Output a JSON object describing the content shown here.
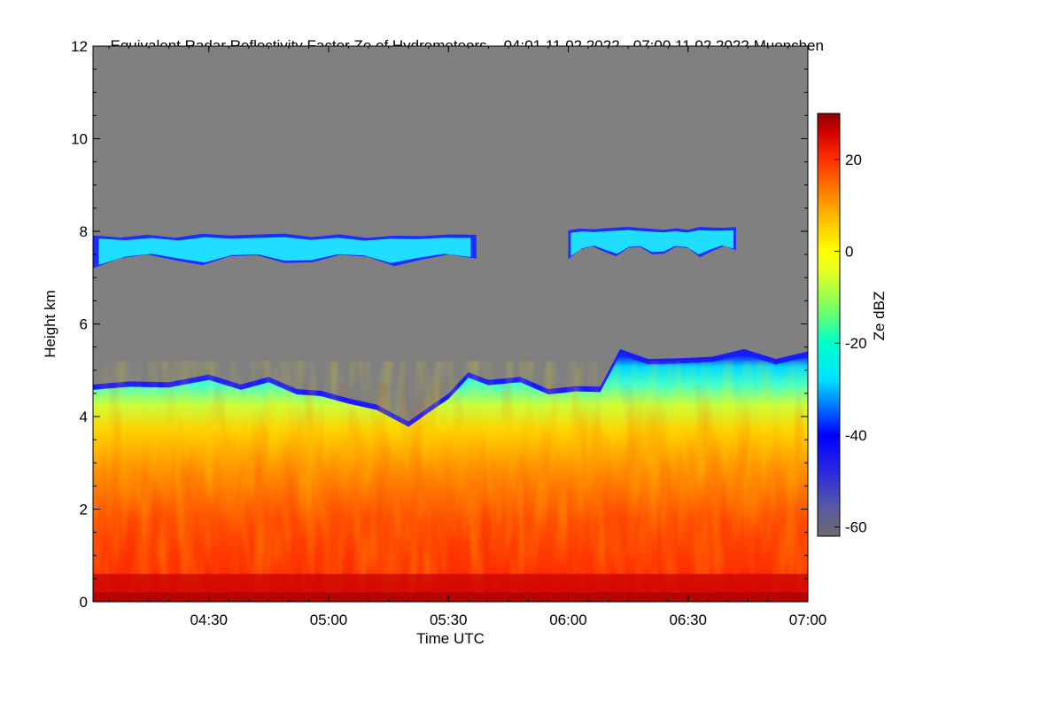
{
  "chart_data": {
    "type": "heatmap",
    "title": "Equivalent Radar Reflectivity Factor Ze of Hydrometeors",
    "period": "04:01 11.02.2022 - 07:00 11.02.2022",
    "station": "Muenchen",
    "xlabel": "Time UTC",
    "ylabel": "Height km",
    "x_ticks": [
      "04:30",
      "05:00",
      "05:30",
      "06:00",
      "06:30",
      "07:00"
    ],
    "x_tick_minutes": [
      30,
      60,
      90,
      120,
      150,
      180
    ],
    "xlim_minutes": [
      1,
      180
    ],
    "y_ticks": [
      0,
      2,
      4,
      6,
      8,
      10,
      12
    ],
    "ylim": [
      0,
      12
    ],
    "colorbar": {
      "label": "Ze dBZ",
      "ticks": [
        20,
        0,
        -20,
        -40,
        -60
      ],
      "range": [
        -62,
        30
      ],
      "stops": [
        {
          "v": -62,
          "c": "#6b6b6b"
        },
        {
          "v": -56,
          "c": "#5a5aa0"
        },
        {
          "v": -48,
          "c": "#2a2ae0"
        },
        {
          "v": -40,
          "c": "#0000ff"
        },
        {
          "v": -34,
          "c": "#0070ff"
        },
        {
          "v": -28,
          "c": "#00e0ff"
        },
        {
          "v": -20,
          "c": "#00ffcc"
        },
        {
          "v": -12,
          "c": "#80ff60"
        },
        {
          "v": -4,
          "c": "#e8ff20"
        },
        {
          "v": 0,
          "c": "#ffff00"
        },
        {
          "v": 6,
          "c": "#ffc800"
        },
        {
          "v": 12,
          "c": "#ff8a00"
        },
        {
          "v": 20,
          "c": "#ff3000"
        },
        {
          "v": 26,
          "c": "#d00000"
        },
        {
          "v": 30,
          "c": "#8a0000"
        }
      ]
    },
    "background_color": "#808080",
    "series": [
      {
        "name": "precipitation_echo_top_km",
        "times_minutes": [
          1,
          10,
          20,
          30,
          38,
          45,
          52,
          58,
          65,
          72,
          80,
          86,
          90,
          95,
          100,
          108,
          115,
          122,
          128,
          133,
          140,
          148,
          156,
          164,
          172,
          180
        ],
        "top_km": [
          4.75,
          4.7,
          4.8,
          4.85,
          4.75,
          4.8,
          4.65,
          4.5,
          4.45,
          4.2,
          3.95,
          4.2,
          4.55,
          4.9,
          4.85,
          4.8,
          4.65,
          4.6,
          4.7,
          5.4,
          5.3,
          5.2,
          5.35,
          5.4,
          5.3,
          5.35
        ]
      },
      {
        "name": "upper_cloud_layer_1",
        "start_minutes": 1,
        "end_minutes": 97,
        "base_km": 7.1,
        "top_km": 8.1
      },
      {
        "name": "upper_cloud_layer_2",
        "start_minutes": 120,
        "end_minutes": 162,
        "base_km": 7.3,
        "top_km": 8.25
      }
    ],
    "annotation": "strong reflectivity band near 0-0.6 km"
  }
}
